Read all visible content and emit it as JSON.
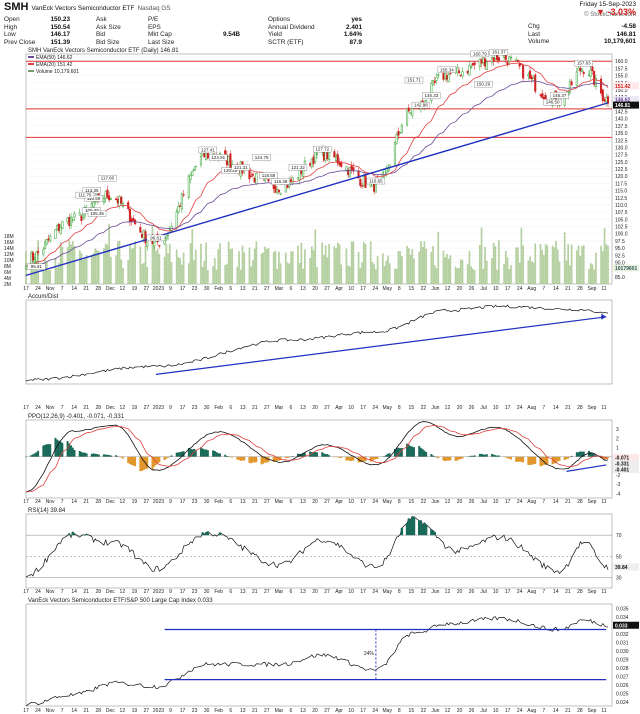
{
  "header": {
    "ticker": "SMH",
    "name": "VanEck Vectors Semiconductor ETF",
    "exchange": "Nasdaq GS",
    "date": "Friday 15-Sep-2023",
    "change_pct": "-3.03%",
    "copyright": "© StockCharts.com",
    "col1": [
      [
        "Open",
        "150.23"
      ],
      [
        "High",
        "150.54"
      ],
      [
        "Low",
        "146.17"
      ],
      [
        "Prev Close",
        "151.39"
      ]
    ],
    "col2": [
      [
        "Ask",
        ""
      ],
      [
        "Ask Size",
        ""
      ],
      [
        "Bid",
        ""
      ],
      [
        "Bid Size",
        ""
      ]
    ],
    "col3": [
      [
        "P/E",
        ""
      ],
      [
        "EPS",
        ""
      ],
      [
        "Mkt Cap",
        "9.54B"
      ],
      [
        "Last Size",
        ""
      ]
    ],
    "col4": [
      [
        "Options",
        "yes"
      ],
      [
        "Annual Dividend",
        "2.401"
      ],
      [
        "Yield",
        "1.64%"
      ],
      [
        "SCTR (ETF)",
        "87.9"
      ]
    ],
    "col5": [
      [
        "Chg",
        "-4.58"
      ],
      [
        "Last",
        "146.81"
      ],
      [
        "Volume",
        "10,179,601"
      ]
    ]
  },
  "colors": {
    "up": "#2aa02a",
    "down": "#d02020",
    "ma_red": "#e04040",
    "ma_purple": "#6a4a9a",
    "trendline": "#2030c0",
    "hline": "#e03030",
    "volume": "#a8c890",
    "ppo_pos": "#1a6a5a",
    "ppo_neg": "#e0962a"
  },
  "chart_data": [
    {
      "type": "candlestick",
      "title": "SMH VanEck Vectors Semiconductor ETF (Daily) 146.81",
      "legend": [
        "EMA(50) 146.62",
        "EMA(20) 151.42",
        "Volume 10,179,601"
      ],
      "ylim": [
        82.5,
        162.5
      ],
      "price_ticks": [
        "162.5",
        "160.0",
        "157.5",
        "155.0",
        "152.5",
        "150.0",
        "147.5",
        "145.0",
        "142.5",
        "140.0",
        "137.5",
        "135.0",
        "132.5",
        "130.0",
        "127.5",
        "125.0",
        "122.5",
        "120.0",
        "117.5",
        "115.0",
        "112.5",
        "110.0",
        "107.5",
        "105.0",
        "102.5",
        "100.0",
        "97.5",
        "95.0",
        "92.5",
        "90.0",
        "87.5",
        "85.0"
      ],
      "volume_ticks": [
        "18M",
        "16M",
        "14M",
        "12M",
        "10M",
        "8M",
        "6M",
        "4M",
        "2M"
      ],
      "last_price_label": "146.81",
      "ema50_label": "146.62",
      "ema20_label": "151.42",
      "volume_label": "10179601",
      "annotations": [
        "113.35",
        "117.60",
        "110.59",
        "111.75",
        "106.30",
        "105.35",
        "96.61",
        "95.81",
        "127.41",
        "124.91",
        "120.26",
        "121.31",
        "124.75",
        "127.72",
        "121.32",
        "118.58",
        "116.39",
        "116.65",
        "151.71",
        "155.34",
        "160.79",
        "161.37",
        "142.98",
        "146.33",
        "150.29",
        "157.63",
        "146.37",
        "146.50"
      ],
      "key_points": [
        [
          "2022-10-14",
          91.0
        ],
        [
          "2022-11-10",
          105.0
        ],
        [
          "2022-11-30",
          113.35
        ],
        [
          "2022-12-28",
          97.0
        ],
        [
          "2023-01-27",
          127.4
        ],
        [
          "2023-03-10",
          116.4
        ],
        [
          "2023-04-03",
          127.7
        ],
        [
          "2023-05-04",
          116.7
        ],
        [
          "2023-05-25",
          143.0
        ],
        [
          "2023-06-14",
          155.3
        ],
        [
          "2023-07-14",
          161.4
        ],
        [
          "2023-08-18",
          146.4
        ],
        [
          "2023-09-01",
          157.6
        ],
        [
          "2023-09-15",
          146.81
        ]
      ],
      "horizontal_lines": [
        160.0,
        143.4,
        133.5
      ],
      "x_ticks": [
        "17",
        "24",
        "Nov",
        "7",
        "14",
        "21",
        "28",
        "Dec",
        "12",
        "19",
        "27",
        "2023",
        "9",
        "17",
        "23",
        "30",
        "Feb",
        "6",
        "13",
        "21",
        "27",
        "Mar",
        "6",
        "13",
        "20",
        "27",
        "Apr",
        "10",
        "17",
        "24",
        "May",
        "8",
        "15",
        "22",
        "Jun",
        "12",
        "20",
        "26",
        "Jul",
        "10",
        "17",
        "24",
        "Aug",
        "7",
        "14",
        "21",
        "28",
        "Sep",
        "11"
      ]
    },
    {
      "type": "line",
      "title": "Accum/Dist",
      "key_points": [
        [
          "2022-10-14",
          0.05
        ],
        [
          "2022-12-28",
          0.22
        ],
        [
          "2023-03-15",
          0.55
        ],
        [
          "2023-05-04",
          0.65
        ],
        [
          "2023-06-15",
          0.92
        ],
        [
          "2023-07-14",
          0.97
        ],
        [
          "2023-09-01",
          0.93
        ],
        [
          "2023-09-15",
          0.88
        ]
      ]
    },
    {
      "type": "line",
      "title": "PPO(12,26,9) -0.401, -0.071, -0.331",
      "y_ticks": [
        "3",
        "2",
        "1",
        "0",
        "-1",
        "-2",
        "-3",
        "-4"
      ],
      "value_labels": [
        "-0.071",
        "-0.331",
        "-0.401"
      ],
      "ylim": [
        -4.5,
        4
      ],
      "key_points": [
        [
          "2022-10-14",
          -3.8
        ],
        [
          "2022-11-10",
          2.8
        ],
        [
          "2022-12-05",
          3.4
        ],
        [
          "2022-12-28",
          -1.5
        ],
        [
          "2023-02-02",
          2.7
        ],
        [
          "2023-03-10",
          -0.6
        ],
        [
          "2023-04-05",
          1.3
        ],
        [
          "2023-05-04",
          -0.9
        ],
        [
          "2023-06-01",
          3.8
        ],
        [
          "2023-06-20",
          2.2
        ],
        [
          "2023-07-12",
          3.2
        ],
        [
          "2023-08-20",
          -1.4
        ],
        [
          "2023-09-05",
          0.4
        ],
        [
          "2023-09-15",
          -0.4
        ]
      ]
    },
    {
      "type": "line",
      "title": "RSI(14) 39.84",
      "y_ticks": [
        "70",
        "50",
        "30"
      ],
      "last_label": "39.84",
      "ylim": [
        20,
        90
      ],
      "key_points": [
        [
          "2022-10-14",
          32
        ],
        [
          "2022-11-10",
          70
        ],
        [
          "2022-12-05",
          62
        ],
        [
          "2022-12-28",
          38
        ],
        [
          "2023-01-27",
          72
        ],
        [
          "2023-03-10",
          42
        ],
        [
          "2023-04-03",
          66
        ],
        [
          "2023-05-04",
          40
        ],
        [
          "2023-05-26",
          85
        ],
        [
          "2023-06-20",
          55
        ],
        [
          "2023-07-14",
          68
        ],
        [
          "2023-08-18",
          36
        ],
        [
          "2023-09-01",
          63
        ],
        [
          "2023-09-15",
          39.84
        ]
      ]
    },
    {
      "type": "line",
      "title": "VanEck Vectors Semiconductor ETF/S&P 500 Large Cap Index 0.033",
      "y_ticks": [
        "0.035",
        "0.034",
        "0.033",
        "0.032",
        "0.031",
        "0.030",
        "0.029",
        "0.028",
        "0.027",
        "0.026",
        "0.025",
        "0.024"
      ],
      "last_label": "0.033",
      "ylim": [
        0.0235,
        0.0355
      ],
      "annotations": [
        "24%"
      ],
      "horizontal_lines": [
        0.0325,
        0.0266
      ],
      "key_points": [
        [
          "2022-10-14",
          0.0237
        ],
        [
          "2022-11-10",
          0.0248
        ],
        [
          "2022-12-05",
          0.0262
        ],
        [
          "2022-12-28",
          0.0258
        ],
        [
          "2023-01-27",
          0.0284
        ],
        [
          "2023-03-10",
          0.0284
        ],
        [
          "2023-04-03",
          0.0295
        ],
        [
          "2023-05-04",
          0.0277
        ],
        [
          "2023-05-25",
          0.032
        ],
        [
          "2023-06-15",
          0.0332
        ],
        [
          "2023-07-14",
          0.0338
        ],
        [
          "2023-08-18",
          0.0325
        ],
        [
          "2023-09-01",
          0.0336
        ],
        [
          "2023-09-15",
          0.033
        ]
      ]
    }
  ]
}
